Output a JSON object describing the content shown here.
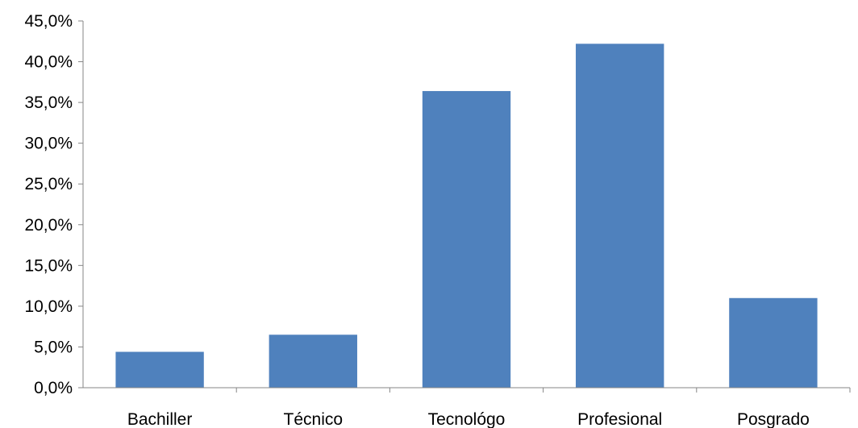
{
  "chart_data": {
    "type": "bar",
    "categories": [
      "Bachiller",
      "Técnico",
      "Tecnológo",
      "Profesional",
      "Posgrado"
    ],
    "values": [
      4.4,
      6.5,
      36.4,
      42.2,
      11.0
    ],
    "ylim": [
      0,
      45
    ],
    "yticks": [
      0,
      5,
      10,
      15,
      20,
      25,
      30,
      35,
      40,
      45
    ],
    "ytick_labels": [
      "0,0%",
      "5,0%",
      "10,0%",
      "15,0%",
      "20,0%",
      "25,0%",
      "30,0%",
      "35,0%",
      "40,0%",
      "45,0%"
    ],
    "title": "",
    "xlabel": "",
    "ylabel": "",
    "grid": false,
    "legend": "none",
    "colors": {
      "bar": "#4F81BD",
      "axis": "#868686",
      "text": "#000000"
    }
  }
}
